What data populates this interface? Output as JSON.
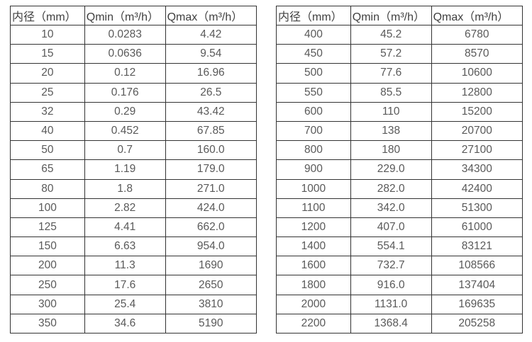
{
  "colors": {
    "background": "#ffffff",
    "border": "#333333",
    "header_text": "#404040",
    "cell_text": "#595959"
  },
  "tables": [
    {
      "name": "flow-table-small-diameters",
      "headers": [
        "内径（mm）",
        "Qmin（m³/h）",
        "Qmax（m³/h）"
      ],
      "rows": [
        [
          "10",
          "0.0283",
          "4.42"
        ],
        [
          "15",
          "0.0636",
          "9.54"
        ],
        [
          "20",
          "0.12",
          "16.96"
        ],
        [
          "25",
          "0.176",
          "26.5"
        ],
        [
          "32",
          "0.29",
          "43.42"
        ],
        [
          "40",
          "0.452",
          "67.85"
        ],
        [
          "50",
          "0.7",
          "160.0"
        ],
        [
          "65",
          "1.19",
          "179.0"
        ],
        [
          "80",
          "1.8",
          "271.0"
        ],
        [
          "100",
          "2.82",
          "424.0"
        ],
        [
          "125",
          "4.41",
          "662.0"
        ],
        [
          "150",
          "6.63",
          "954.0"
        ],
        [
          "200",
          "11.3",
          "1690"
        ],
        [
          "250",
          "17.6",
          "2650"
        ],
        [
          "300",
          "25.4",
          "3810"
        ],
        [
          "350",
          "34.6",
          "5190"
        ]
      ]
    },
    {
      "name": "flow-table-large-diameters",
      "headers": [
        "内径（mm）",
        "Qmin（m³/h）",
        "Qmax（m³/h）"
      ],
      "rows": [
        [
          "400",
          "45.2",
          "6780"
        ],
        [
          "450",
          "57.2",
          "8570"
        ],
        [
          "500",
          "77.6",
          "10600"
        ],
        [
          "550",
          "85.5",
          "12800"
        ],
        [
          "600",
          "110",
          "15200"
        ],
        [
          "700",
          "138",
          "20700"
        ],
        [
          "800",
          "180",
          "27100"
        ],
        [
          "900",
          "229.0",
          "34300"
        ],
        [
          "1000",
          "282.0",
          "42400"
        ],
        [
          "1100",
          "342.0",
          "51300"
        ],
        [
          "1200",
          "407.0",
          "61000"
        ],
        [
          "1400",
          "554.1",
          "83121"
        ],
        [
          "1600",
          "732.7",
          "108566"
        ],
        [
          "1800",
          "916.0",
          "137404"
        ],
        [
          "2000",
          "1131.0",
          "169635"
        ],
        [
          "2200",
          "1368.4",
          "205258"
        ]
      ]
    }
  ]
}
